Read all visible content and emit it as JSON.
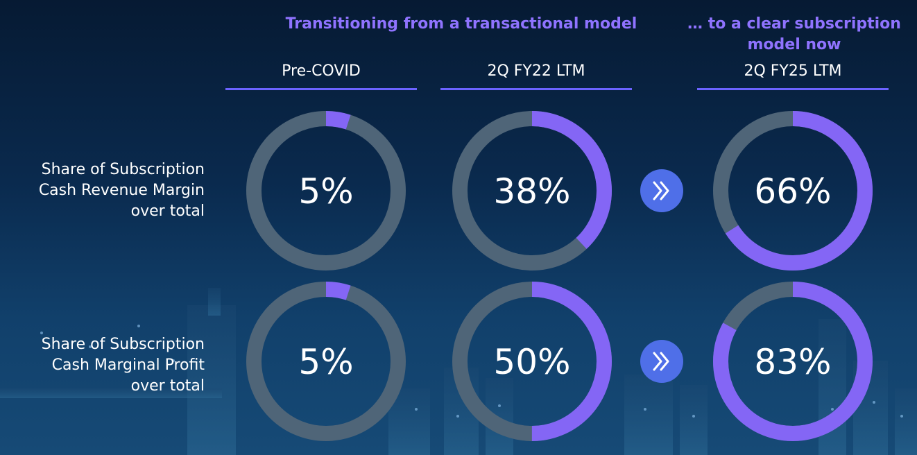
{
  "headings": {
    "left": "Transitioning from a transactional model",
    "right": "… to a clear subscription model now"
  },
  "columns": [
    {
      "label": "Pre-COVID"
    },
    {
      "label": "2Q FY22 LTM"
    },
    {
      "label": "2Q FY25 LTM"
    }
  ],
  "rows": [
    {
      "label_lines": [
        "Share of Subscription",
        "Cash Revenue Margin",
        "over total"
      ]
    },
    {
      "label_lines": [
        "Share of Subscription",
        "Cash Marginal Profit",
        "over total"
      ]
    }
  ],
  "colors": {
    "accent": "#8466f5",
    "track": "#4f6578",
    "arrow_circle": "#4f6fe8",
    "heading": "#8f73ff",
    "underline": "#6c63ff"
  },
  "chart_data": [
    {
      "type": "pie",
      "categories": [
        "Pre-COVID",
        "2Q FY22 LTM",
        "2Q FY25 LTM"
      ],
      "values": [
        5,
        38,
        66
      ],
      "labels": [
        "5%",
        "38%",
        "66%"
      ],
      "unit": "%"
    },
    {
      "type": "pie",
      "categories": [
        "Pre-COVID",
        "2Q FY22 LTM",
        "2Q FY25 LTM"
      ],
      "values": [
        5,
        50,
        83
      ],
      "labels": [
        "5%",
        "50%",
        "83%"
      ],
      "unit": "%"
    }
  ]
}
